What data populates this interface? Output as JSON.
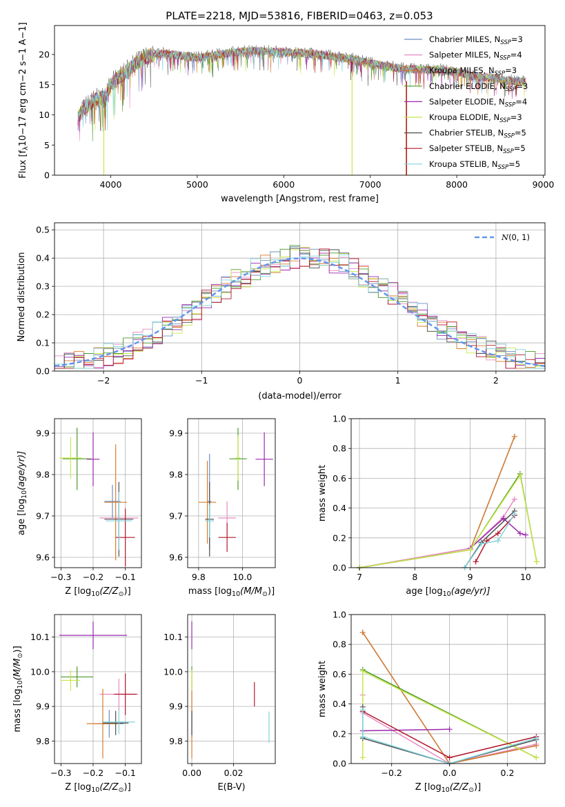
{
  "figure_title": "PLATE=2218, MJD=53816, FIBERID=0463, z=0.053",
  "series_styles": [
    {
      "name": "Chabrier MILES, N_SSP=3",
      "color": "#6c8ebf"
    },
    {
      "name": "Salpeter MILES, N_SSP=4",
      "color": "#e78ac3"
    },
    {
      "name": "Kroupa MILES, N_SSP=3",
      "color": "#d97b2b"
    },
    {
      "name": "Chabrier ELODIE, N_SSP=3",
      "color": "#4a9a2a"
    },
    {
      "name": "Salpeter ELODIE, N_SSP=4",
      "color": "#9b27af"
    },
    {
      "name": "Kroupa ELODIE, N_SSP=3",
      "color": "#c8e64a"
    },
    {
      "name": "Chabrier STELIB, N_SSP=5",
      "color": "#4d4d4d"
    },
    {
      "name": "Salpeter STELIB, N_SSP=5",
      "color": "#b2182b"
    },
    {
      "name": "Kroupa STELIB, N_SSP=5",
      "color": "#7fd4dc"
    }
  ],
  "chart_data": [
    {
      "id": "spectrum",
      "type": "line",
      "title": "PLATE=2218, MJD=53816, FIBERID=0463, z=0.053",
      "xlabel": "wavelength [Angstrom, rest frame]",
      "ylabel": "Flux [f_λ10^-17 erg cm^-2 s^-1 A^-1]",
      "xlim": [
        3350,
        9020
      ],
      "ylim": [
        0,
        24.8
      ],
      "xticks": [
        4000,
        5000,
        6000,
        7000,
        8000,
        9000
      ],
      "yticks": [
        0,
        5,
        10,
        15,
        20
      ],
      "grid": false,
      "legend_position": "top-right",
      "legend": [
        {
          "prefix": "Chabrier MILES, N",
          "sub": "SSP",
          "suffix": "=3"
        },
        {
          "prefix": "Salpeter MILES, N",
          "sub": "SSP",
          "suffix": "=4"
        },
        {
          "prefix": "Kroupa MILES, N",
          "sub": "SSP",
          "suffix": "=3"
        },
        {
          "prefix": "Chabrier ELODIE, N",
          "sub": "SSP",
          "suffix": "=3"
        },
        {
          "prefix": "Salpeter ELODIE, N",
          "sub": "SSP",
          "suffix": "=4"
        },
        {
          "prefix": "Kroupa ELODIE, N",
          "sub": "SSP",
          "suffix": "=3"
        },
        {
          "prefix": "Chabrier STELIB, N",
          "sub": "SSP",
          "suffix": "=5"
        },
        {
          "prefix": "Salpeter STELIB, N",
          "sub": "SSP",
          "suffix": "=5"
        },
        {
          "prefix": "Kroupa STELIB, N",
          "sub": "SSP",
          "suffix": "=5"
        }
      ],
      "continuum": {
        "x": [
          3620,
          3700,
          3800,
          3900,
          3950,
          4000,
          4100,
          4200,
          4300,
          4400,
          4500,
          4600,
          4700,
          4800,
          4900,
          5000,
          5200,
          5400,
          5600,
          5800,
          6000,
          6200,
          6400,
          6600,
          6800,
          7000,
          7200,
          7400,
          7600,
          7800,
          8000,
          8200,
          8400,
          8600,
          8800
        ],
        "y": [
          9.5,
          11.2,
          12.3,
          12.8,
          13.3,
          15.0,
          16.3,
          17.4,
          18.6,
          19.6,
          19.9,
          20.2,
          20.0,
          19.8,
          19.7,
          19.5,
          19.9,
          20.3,
          20.6,
          20.5,
          20.4,
          20.2,
          20.0,
          19.6,
          19.2,
          18.6,
          18.0,
          17.6,
          17.5,
          17.5,
          17.1,
          16.4,
          16.1,
          15.7,
          15.4
        ]
      },
      "dips": [
        {
          "series": 5,
          "x": 3920,
          "y": 0
        },
        {
          "series": 5,
          "x": 6790,
          "y": 0
        },
        {
          "series": 2,
          "x": 7415,
          "y": 0
        },
        {
          "series": 7,
          "x": 7420,
          "y": 0
        }
      ]
    },
    {
      "id": "residuals",
      "type": "histogram",
      "xlabel": "(data-model)/error",
      "ylabel": "Normed distribution",
      "xlim": [
        -2.5,
        2.5
      ],
      "ylim": [
        0,
        0.525
      ],
      "xticks": [
        -2,
        -1,
        0,
        1,
        2
      ],
      "yticks": [
        0.0,
        0.1,
        0.2,
        0.3,
        0.4,
        0.5
      ],
      "bin_width": 0.1,
      "grid": true,
      "legend_position": "top-right",
      "reference_curve": {
        "label": "N(0,1)",
        "mean": 0,
        "sigma": 1,
        "color": "#6495ed",
        "style": "dashed"
      },
      "reference_label": {
        "script": "N",
        "args": "(0, 1)"
      }
    },
    {
      "id": "age-vs-Z",
      "type": "errorbar",
      "xlabel_main": "Z [log",
      "xlabel_sub": "10",
      "xlabel_paren": "(Z/Z",
      "xlabel_sun": "⊙",
      "xlabel_end": ")]",
      "ylabel_main": "age  [log",
      "ylabel_sub": "10",
      "ylabel_end": "(age/yr)]",
      "xlim": [
        -0.32,
        -0.05
      ],
      "ylim": [
        9.575,
        9.935
      ],
      "xticks": [
        -0.3,
        -0.2,
        -0.1
      ],
      "yticks": [
        9.6,
        9.7,
        9.8,
        9.9
      ],
      "grid": true,
      "points": [
        {
          "series": 0,
          "x": -0.14,
          "xerr": 0.025,
          "y": 9.735,
          "yerr": 0.04
        },
        {
          "series": 1,
          "x": -0.12,
          "xerr": 0.06,
          "y": 9.695,
          "yerr": 0.05
        },
        {
          "series": 2,
          "x": -0.13,
          "xerr": 0.035,
          "y": 9.733,
          "yerr": 0.14
        },
        {
          "series": 3,
          "x": -0.25,
          "xerr": 0.045,
          "y": 9.838,
          "yerr": 0.075
        },
        {
          "series": 4,
          "x": -0.2,
          "xerr": 0.02,
          "y": 9.837,
          "yerr": 0.065
        },
        {
          "series": 5,
          "x": -0.27,
          "xerr": 0.035,
          "y": 9.84,
          "yerr": 0.05
        },
        {
          "series": 6,
          "x": -0.12,
          "xerr": 0.045,
          "y": 9.692,
          "yerr": 0.09
        },
        {
          "series": 7,
          "x": -0.1,
          "xerr": 0.03,
          "y": 9.648,
          "yerr": 0.07
        },
        {
          "series": 8,
          "x": -0.12,
          "xerr": 0.04,
          "y": 9.688,
          "yerr": 0.07
        }
      ]
    },
    {
      "id": "age-vs-mass",
      "type": "errorbar",
      "xlabel_main": "mass [log",
      "xlabel_sub": "10",
      "xlabel_paren": "(M/M",
      "xlabel_sun": "⊙",
      "xlabel_end": ")]",
      "xlim": [
        9.75,
        10.15
      ],
      "ylim": [
        9.575,
        9.935
      ],
      "xticks": [
        9.8,
        10.0
      ],
      "yticks": [
        9.6,
        9.7,
        9.8,
        9.9
      ],
      "grid": true,
      "points": [
        {
          "series": 0,
          "x": 9.85,
          "xerr": 0.008,
          "y": 9.735,
          "yerr": 0.115
        },
        {
          "series": 1,
          "x": 9.93,
          "xerr": 0.04,
          "y": 9.695,
          "yerr": 0.04
        },
        {
          "series": 2,
          "x": 9.84,
          "xerr": 0.04,
          "y": 9.733,
          "yerr": 0.1
        },
        {
          "series": 3,
          "x": 9.98,
          "xerr": 0.04,
          "y": 9.838,
          "yerr": 0.075
        },
        {
          "series": 4,
          "x": 10.1,
          "xerr": 0.04,
          "y": 9.837,
          "yerr": 0.065
        },
        {
          "series": 5,
          "x": 9.98,
          "xerr": 0.01,
          "y": 9.84,
          "yerr": 0.055
        },
        {
          "series": 6,
          "x": 9.85,
          "xerr": 0.02,
          "y": 9.692,
          "yerr": 0.09
        },
        {
          "series": 7,
          "x": 9.93,
          "xerr": 0.04,
          "y": 9.648,
          "yerr": 0.035
        },
        {
          "series": 8,
          "x": 9.85,
          "xerr": 0.02,
          "y": 9.688,
          "yerr": 0.04
        }
      ]
    },
    {
      "id": "weight-vs-age",
      "type": "line",
      "xlabel_main": "age  [log",
      "xlabel_sub": "10",
      "xlabel_end": "(age/yr)]",
      "ylabel": "mass weight",
      "xlim": [
        6.85,
        10.35
      ],
      "ylim": [
        0,
        1.0
      ],
      "xticks": [
        7,
        8,
        9,
        10
      ],
      "yticks": [
        0.0,
        0.2,
        0.4,
        0.6,
        0.8,
        1.0
      ],
      "grid": true,
      "series": [
        {
          "series": 0,
          "x": [
            7.0,
            9.0,
            9.8
          ],
          "y": [
            0.0,
            0.12,
            0.88
          ]
        },
        {
          "series": 1,
          "x": [
            7.0,
            9.0,
            9.6,
            9.8
          ],
          "y": [
            0.0,
            0.13,
            0.34,
            0.46
          ]
        },
        {
          "series": 2,
          "x": [
            7.0,
            9.0,
            9.8
          ],
          "y": [
            0.0,
            0.12,
            0.88
          ]
        },
        {
          "series": 3,
          "x": [
            7.0,
            9.0,
            9.9,
            10.2
          ],
          "y": [
            0.0,
            0.12,
            0.63,
            0.04
          ]
        },
        {
          "series": 4,
          "x": [
            9.0,
            9.6,
            9.9,
            10.0
          ],
          "y": [
            0.13,
            0.33,
            0.23,
            0.22
          ]
        },
        {
          "series": 5,
          "x": [
            7.0,
            9.0,
            9.9,
            10.2
          ],
          "y": [
            0.0,
            0.12,
            0.62,
            0.04
          ]
        },
        {
          "series": 6,
          "x": [
            8.9,
            9.2,
            9.8
          ],
          "y": [
            0.0,
            0.17,
            0.38
          ]
        },
        {
          "series": 7,
          "x": [
            9.1,
            9.3,
            9.5,
            9.8
          ],
          "y": [
            0.04,
            0.18,
            0.23,
            0.35
          ]
        },
        {
          "series": 8,
          "x": [
            8.9,
            9.2,
            9.5,
            9.8
          ],
          "y": [
            0.0,
            0.16,
            0.18,
            0.36
          ]
        }
      ]
    },
    {
      "id": "mass-vs-Z",
      "type": "errorbar",
      "xlabel_main": "Z [log",
      "xlabel_sub": "10",
      "xlabel_paren": "(Z/Z",
      "xlabel_sun": "⊙",
      "xlabel_end": ")]",
      "ylabel_main": "mass [log",
      "ylabel_sub": "10",
      "ylabel_paren": "(M/M",
      "ylabel_sun": "⊙",
      "ylabel_end": ")]",
      "xlim": [
        -0.32,
        -0.05
      ],
      "ylim": [
        9.735,
        10.165
      ],
      "xticks": [
        -0.3,
        -0.2,
        -0.1
      ],
      "yticks": [
        9.8,
        9.9,
        10.0,
        10.1
      ],
      "grid": true,
      "points": [
        {
          "series": 0,
          "x": -0.15,
          "xerr": 0.045,
          "y": 9.85,
          "yerr": 0.04
        },
        {
          "series": 1,
          "x": -0.12,
          "xerr": 0.06,
          "y": 9.935,
          "yerr": 0.045
        },
        {
          "series": 2,
          "x": -0.17,
          "xerr": 0.05,
          "y": 9.85,
          "yerr": 0.1
        },
        {
          "series": 3,
          "x": -0.25,
          "xerr": 0.05,
          "y": 9.985,
          "yerr": 0.03
        },
        {
          "series": 4,
          "x": -0.2,
          "xerr": 0.105,
          "y": 10.105,
          "yerr": 0.04
        },
        {
          "series": 5,
          "x": -0.27,
          "xerr": 0.03,
          "y": 9.975,
          "yerr": 0.03
        },
        {
          "series": 6,
          "x": -0.13,
          "xerr": 0.04,
          "y": 9.852,
          "yerr": 0.035
        },
        {
          "series": 7,
          "x": -0.1,
          "xerr": 0.035,
          "y": 9.935,
          "yerr": 0.06
        },
        {
          "series": 8,
          "x": -0.12,
          "xerr": 0.05,
          "y": 9.855,
          "yerr": 0.035
        }
      ]
    },
    {
      "id": "mass-vs-EBV",
      "type": "errorbar",
      "xlabel": "E(B-V)",
      "xlim": [
        -0.002,
        0.04
      ],
      "ylim": [
        9.735,
        10.165
      ],
      "xticks": [
        0.0,
        0.02
      ],
      "xtick_labels": [
        "0.00",
        "0.02"
      ],
      "yticks": [
        9.8,
        9.9,
        10.0,
        10.1
      ],
      "grid": true,
      "points": [
        {
          "series": 0,
          "x": 0.0,
          "xerr": 0,
          "y": 9.85,
          "yerr": 0.04
        },
        {
          "series": 1,
          "x": 0.0,
          "xerr": 0,
          "y": 9.935,
          "yerr": 0.045
        },
        {
          "series": 2,
          "x": 0.0,
          "xerr": 0,
          "y": 9.85,
          "yerr": 0.1
        },
        {
          "series": 3,
          "x": 0.0,
          "xerr": 0,
          "y": 9.985,
          "yerr": 0.03
        },
        {
          "series": 4,
          "x": 0.0,
          "xerr": 0,
          "y": 10.105,
          "yerr": 0.04
        },
        {
          "series": 5,
          "x": 0.0,
          "xerr": 0,
          "y": 9.975,
          "yerr": 0.03
        },
        {
          "series": 6,
          "x": 0.0,
          "xerr": 0,
          "y": 9.852,
          "yerr": 0.035
        },
        {
          "series": 7,
          "x": 0.03,
          "xerr": 0,
          "y": 9.935,
          "yerr": 0.035
        },
        {
          "series": 8,
          "x": 0.037,
          "xerr": 0,
          "y": 9.84,
          "yerr": 0.045
        }
      ]
    },
    {
      "id": "weight-vs-Z",
      "type": "line",
      "xlabel_main": "Z [log",
      "xlabel_sub": "10",
      "xlabel_paren": "(Z/Z",
      "xlabel_sun": "⊙",
      "xlabel_end": ")]",
      "ylabel": "mass weight",
      "xlim": [
        -0.34,
        0.33
      ],
      "ylim": [
        0,
        1.0
      ],
      "xticks": [
        -0.2,
        0.0,
        0.2
      ],
      "xtick_labels": [
        "−0.2",
        "0.0",
        "0.2"
      ],
      "yticks": [
        0.0,
        0.2,
        0.4,
        0.6,
        0.8,
        1.0
      ],
      "grid": true,
      "series": [
        {
          "series": 0,
          "x": [
            -0.3,
            0.0,
            0.3
          ],
          "y": [
            0.88,
            0.0,
            0.12
          ]
        },
        {
          "series": 1,
          "x": [
            -0.3,
            -0.3,
            0.0,
            0.3
          ],
          "y": [
            0.46,
            0.34,
            0.0,
            0.13
          ]
        },
        {
          "series": 2,
          "x": [
            -0.3,
            0.0,
            0.3
          ],
          "y": [
            0.88,
            0.0,
            0.12
          ]
        },
        {
          "series": 3,
          "x": [
            -0.3,
            0.3
          ],
          "y": [
            0.63,
            0.04
          ]
        },
        {
          "series": 4,
          "x": [
            -0.3,
            0.0
          ],
          "y": [
            0.22,
            0.23
          ]
        },
        {
          "series": 5,
          "x": [
            -0.3,
            -0.3,
            0.3
          ],
          "y": [
            0.04,
            0.62,
            0.04
          ]
        },
        {
          "series": 6,
          "x": [
            -0.3,
            -0.3,
            0.0,
            0.3
          ],
          "y": [
            0.38,
            0.17,
            0.0,
            0.16
          ]
        },
        {
          "series": 7,
          "x": [
            -0.3,
            0.0,
            0.3
          ],
          "y": [
            0.35,
            0.04,
            0.18
          ]
        },
        {
          "series": 8,
          "x": [
            -0.3,
            -0.3,
            0.0,
            0.3
          ],
          "y": [
            0.36,
            0.18,
            0.0,
            0.17
          ]
        }
      ]
    }
  ]
}
